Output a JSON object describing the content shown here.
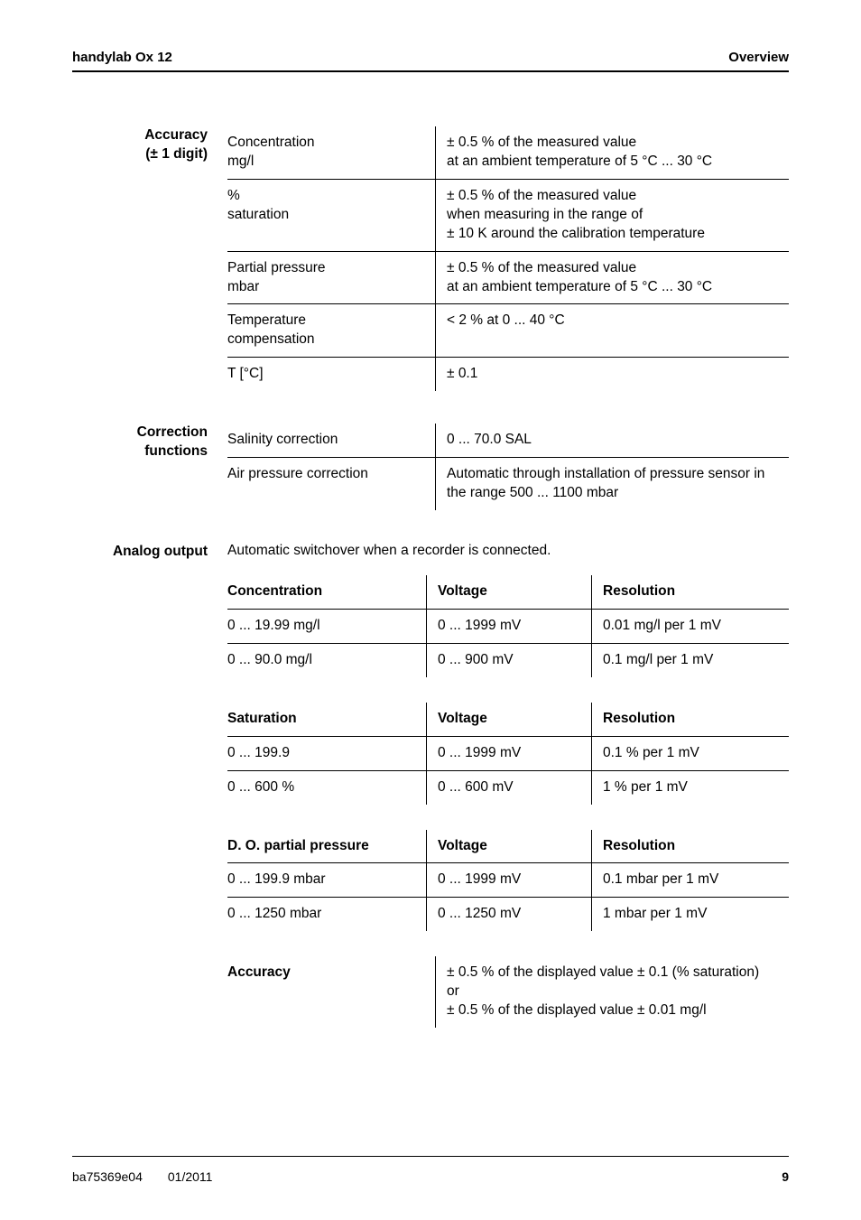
{
  "header": {
    "left": "handylab Ox 12",
    "right": "Overview"
  },
  "accuracy_section": {
    "label_line1": "Accuracy",
    "label_line2": "(± 1 digit)",
    "rows": [
      {
        "param": "Concentration\nmg/l",
        "value": "± 0.5 % of the measured value\nat an ambient temperature of 5 °C ... 30 °C"
      },
      {
        "param": "%\nsaturation",
        "value": "± 0.5 % of the measured value\nwhen measuring in the range of\n± 10 K around the calibration temperature"
      },
      {
        "param": "Partial pressure\nmbar",
        "value": "± 0.5 % of the measured value\nat an ambient temperature of 5 °C ... 30 °C"
      },
      {
        "param": "Temperature\ncompensation",
        "value": "< 2 % at 0 ... 40 °C"
      },
      {
        "param": "T [°C]",
        "value": "± 0.1"
      }
    ]
  },
  "correction_section": {
    "label_line1": "Correction",
    "label_line2": "functions",
    "rows": [
      {
        "param": "Salinity correction",
        "value": "0 ... 70.0 SAL"
      },
      {
        "param": "Air pressure correction",
        "value": "Automatic through installation of pressure sensor in the range 500 ... 1100 mbar"
      }
    ]
  },
  "analog_section": {
    "label": "Analog output",
    "intro": "Automatic switchover when a recorder is connected.",
    "tables": [
      {
        "headers": [
          "Concentration",
          "Voltage",
          "Resolution"
        ],
        "rows": [
          [
            "0 ... 19.99 mg/l",
            "0 ... 1999 mV",
            "0.01 mg/l per 1 mV"
          ],
          [
            "0 ... 90.0 mg/l",
            "0 ... 900 mV",
            "0.1 mg/l per 1 mV"
          ]
        ]
      },
      {
        "headers": [
          "Saturation",
          "Voltage",
          "Resolution"
        ],
        "rows": [
          [
            "0 ... 199.9",
            "0 ... 1999 mV",
            "0.1 % per 1 mV"
          ],
          [
            "0 ... 600 %",
            "0 ... 600 mV",
            "1 % per 1 mV"
          ]
        ]
      },
      {
        "headers": [
          "D. O. partial pressure",
          "Voltage",
          "Resolution"
        ],
        "rows": [
          [
            "0 ... 199.9 mbar",
            "0 ... 1999 mV",
            "0.1 mbar per 1 mV"
          ],
          [
            "0 ... 1250 mbar",
            "0 ... 1250 mV",
            "1 mbar per 1 mV"
          ]
        ]
      }
    ],
    "accuracy_block": {
      "label": "Accuracy",
      "value": "± 0.5 % of the displayed value ± 0.1 (% saturation)\nor\n± 0.5 % of the displayed value ± 0.01 mg/l"
    }
  },
  "footer": {
    "doc": "ba75369e04",
    "date": "01/2011",
    "page": "9"
  }
}
